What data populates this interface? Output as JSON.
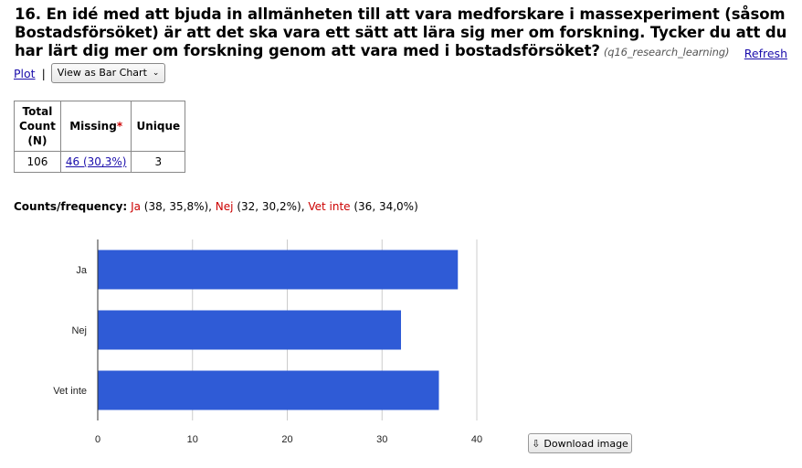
{
  "question": {
    "title": "16. En idé med att bjuda in allmänheten till att vara medforskare i massexperiment (såsom Bostadsförsöket) är att det ska vara ett sätt att lära sig mer om forskning. Tycker du att du har lärt dig mer om forskning genom att vara med i bostadsförsöket?",
    "code": "(q16_research_learning)",
    "refresh_label": "Refresh"
  },
  "controls": {
    "plot_label": "Plot",
    "separator": "|",
    "view_select": "View as Bar Chart",
    "download_label": "Download image",
    "download_icon": "download-icon"
  },
  "stats": {
    "headers": {
      "total": "Total Count (N)",
      "missing": "Missing",
      "missing_mark": "*",
      "unique": "Unique"
    },
    "values": {
      "total": "106",
      "missing": "46 (30,3%)",
      "unique": "3"
    }
  },
  "counts": {
    "label": "Counts/frequency:",
    "items": [
      {
        "cat": "Ja",
        "detail": " (38, 35,8%), "
      },
      {
        "cat": "Nej",
        "detail": " (32, 30,2%), "
      },
      {
        "cat": "Vet inte",
        "detail": " (36, 34,0%)"
      }
    ]
  },
  "chart_data": {
    "type": "bar",
    "orientation": "horizontal",
    "categories": [
      "Ja",
      "Nej",
      "Vet inte"
    ],
    "values": [
      38,
      32,
      36
    ],
    "xlim": [
      0,
      40
    ],
    "xticks": [
      "0",
      "10",
      "20",
      "30",
      "40"
    ],
    "grid": true,
    "bar_color": "#2f5bd6",
    "grid_color": "#cccccc"
  }
}
